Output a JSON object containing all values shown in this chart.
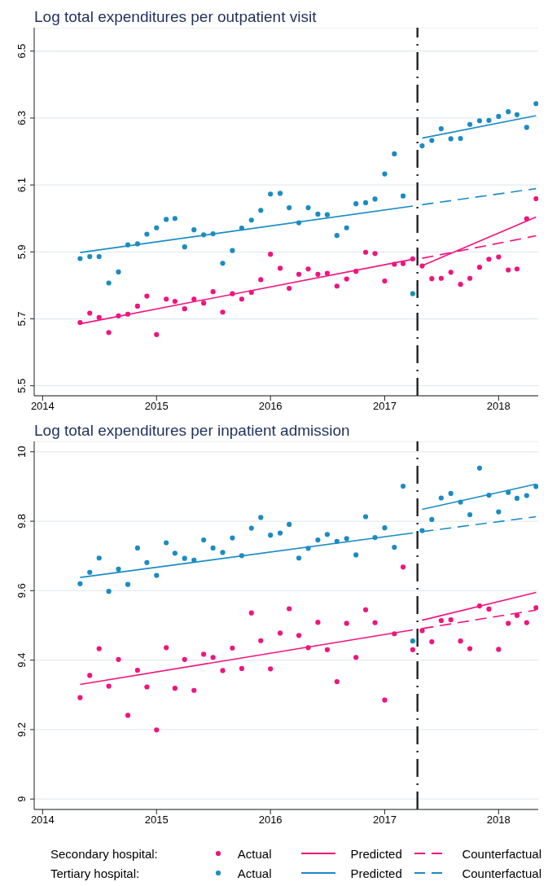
{
  "chart_data": [
    {
      "type": "scatter",
      "title": "Log total expenditures per outpatient visit",
      "x": [
        "2014-05",
        "2014-06",
        "2014-07",
        "2014-08",
        "2014-09",
        "2014-10",
        "2014-11",
        "2014-12",
        "2015-01",
        "2015-02",
        "2015-03",
        "2015-04",
        "2015-05",
        "2015-06",
        "2015-07",
        "2015-08",
        "2015-09",
        "2015-10",
        "2015-11",
        "2015-12",
        "2016-01",
        "2016-02",
        "2016-03",
        "2016-04",
        "2016-05",
        "2016-06",
        "2016-07",
        "2016-08",
        "2016-09",
        "2016-10",
        "2016-11",
        "2016-12",
        "2017-01",
        "2017-02",
        "2017-03",
        "2017-04",
        "2017-05",
        "2017-06",
        "2017-07",
        "2017-08",
        "2017-09",
        "2017-10",
        "2017-11",
        "2017-12",
        "2018-01",
        "2018-02",
        "2018-03",
        "2018-04",
        "2018-05"
      ],
      "xlim": [
        "2013-12-05",
        "2018-05-08"
      ],
      "xticks": [
        "2014",
        "2015",
        "2016",
        "2017",
        "2018"
      ],
      "ylim": [
        5.47,
        6.57
      ],
      "yticks": [
        5.5,
        5.7,
        5.9,
        6.1,
        6.3,
        6.5
      ],
      "grid": "y",
      "ref_lines": [
        {
          "axis": "x",
          "value": "2017-04-16",
          "color": "#222222",
          "line_style": "dashed"
        }
      ],
      "series": [
        {
          "color": "#f0147f",
          "marker": "circle",
          "values": [
            5.689,
            5.717,
            5.704,
            5.659,
            5.709,
            5.714,
            5.738,
            5.768,
            5.653,
            5.759,
            5.752,
            5.73,
            5.759,
            5.747,
            5.781,
            5.72,
            5.775,
            5.759,
            5.779,
            5.817,
            5.893,
            5.851,
            5.791,
            5.833,
            5.849,
            5.833,
            5.836,
            5.798,
            5.819,
            5.842,
            5.899,
            5.895,
            5.813,
            5.863,
            5.865,
            5.879,
            5.858,
            5.82,
            5.821,
            5.839,
            5.803,
            5.821,
            5.854,
            5.878,
            5.885,
            5.846,
            5.849,
            5.999,
            6.059
          ]
        },
        {
          "type": "line",
          "color": "#f0147f",
          "line_style": "solid",
          "x": [
            "2014-05",
            "2017-04"
          ],
          "values": [
            5.685,
            5.878
          ]
        },
        {
          "type": "line",
          "color": "#f0147f",
          "line_style": "solid",
          "x": [
            "2017-05",
            "2018-05"
          ],
          "values": [
            5.859,
            6.004
          ]
        },
        {
          "type": "line",
          "color": "#f0147f",
          "line_style": "dashed",
          "x": [
            "2017-05",
            "2018-05"
          ],
          "values": [
            5.881,
            5.948
          ]
        },
        {
          "color": "#1a8cc3",
          "marker": "circle",
          "values": [
            5.88,
            5.886,
            5.886,
            5.807,
            5.84,
            5.921,
            5.924,
            5.953,
            5.972,
            5.997,
            6.0,
            5.915,
            5.966,
            5.951,
            5.954,
            5.866,
            5.904,
            5.971,
            5.995,
            6.024,
            6.073,
            6.075,
            6.032,
            5.987,
            6.032,
            6.013,
            6.011,
            5.949,
            5.972,
            6.044,
            6.047,
            6.058,
            6.133,
            6.193,
            6.067,
            5.775,
            6.217,
            6.233,
            6.268,
            6.238,
            6.239,
            6.281,
            6.292,
            6.293,
            6.305,
            6.319,
            6.31,
            6.272,
            6.343
          ]
        },
        {
          "type": "line",
          "color": "#1a8cc3",
          "line_style": "solid",
          "x": [
            "2014-05",
            "2017-04"
          ],
          "values": [
            5.898,
            6.037
          ]
        },
        {
          "type": "line",
          "color": "#1a8cc3",
          "line_style": "solid",
          "x": [
            "2017-05",
            "2018-05"
          ],
          "values": [
            6.24,
            6.307
          ]
        },
        {
          "type": "line",
          "color": "#1a8cc3",
          "line_style": "dashed",
          "x": [
            "2017-05",
            "2018-05"
          ],
          "values": [
            6.041,
            6.089
          ]
        }
      ]
    },
    {
      "type": "scatter",
      "title": "Log total expenditures per inpatient admission",
      "x": [
        "2014-05",
        "2014-06",
        "2014-07",
        "2014-08",
        "2014-09",
        "2014-10",
        "2014-11",
        "2014-12",
        "2015-01",
        "2015-02",
        "2015-03",
        "2015-04",
        "2015-05",
        "2015-06",
        "2015-07",
        "2015-08",
        "2015-09",
        "2015-10",
        "2015-11",
        "2015-12",
        "2016-01",
        "2016-02",
        "2016-03",
        "2016-04",
        "2016-05",
        "2016-06",
        "2016-07",
        "2016-08",
        "2016-09",
        "2016-10",
        "2016-11",
        "2016-12",
        "2017-01",
        "2017-02",
        "2017-03",
        "2017-04",
        "2017-05",
        "2017-06",
        "2017-07",
        "2017-08",
        "2017-09",
        "2017-10",
        "2017-11",
        "2017-12",
        "2018-01",
        "2018-02",
        "2018-03",
        "2018-04",
        "2018-05"
      ],
      "xlim": [
        "2013-12-05",
        "2018-05-08"
      ],
      "xticks": [
        "2014",
        "2015",
        "2016",
        "2017",
        "2018"
      ],
      "ylim": [
        8.97,
        10.03
      ],
      "yticks": [
        9,
        9.2,
        9.4,
        9.6,
        9.8,
        10
      ],
      "grid": "y",
      "legend": "bottom",
      "annotations": [
        "Secondary hospital:",
        "Tertiary hospital:"
      ],
      "ref_lines": [
        {
          "axis": "x",
          "value": "2017-04-16",
          "color": "#222222",
          "line_style": "dashed"
        }
      ],
      "series": [
        {
          "name": "Actual",
          "color": "#f0147f",
          "marker": "circle",
          "values": [
            9.292,
            9.356,
            9.433,
            9.325,
            9.402,
            9.241,
            9.371,
            9.323,
            9.199,
            9.436,
            9.319,
            9.402,
            9.313,
            9.417,
            9.408,
            9.37,
            9.435,
            9.376,
            9.536,
            9.456,
            9.375,
            9.478,
            9.548,
            9.471,
            9.436,
            9.509,
            9.43,
            9.338,
            9.506,
            9.408,
            9.545,
            9.508,
            9.285,
            9.476,
            9.668,
            9.43,
            9.485,
            9.453,
            9.514,
            9.516,
            9.455,
            9.433,
            9.556,
            9.547,
            9.431,
            9.506,
            9.529,
            9.508,
            9.551
          ]
        },
        {
          "type": "line",
          "name": "Predicted",
          "color": "#f0147f",
          "line_style": "solid",
          "x": [
            "2014-05",
            "2017-04"
          ],
          "values": [
            9.33,
            9.487
          ]
        },
        {
          "type": "line",
          "color": "#f0147f",
          "line_style": "solid",
          "x": [
            "2017-05",
            "2018-05"
          ],
          "values": [
            9.515,
            9.595
          ]
        },
        {
          "type": "line",
          "name": "Counterfactual",
          "color": "#f0147f",
          "line_style": "dashed",
          "x": [
            "2017-05",
            "2018-05"
          ],
          "values": [
            9.491,
            9.544
          ]
        },
        {
          "name": "Actual",
          "color": "#1a8cc3",
          "marker": "circle",
          "values": [
            9.62,
            9.653,
            9.694,
            9.598,
            9.662,
            9.618,
            9.723,
            9.681,
            9.644,
            9.738,
            9.708,
            9.693,
            9.688,
            9.746,
            9.723,
            9.71,
            9.752,
            9.701,
            9.78,
            9.811,
            9.76,
            9.766,
            9.791,
            9.694,
            9.722,
            9.746,
            9.762,
            9.742,
            9.75,
            9.703,
            9.813,
            9.753,
            9.781,
            9.725,
            9.901,
            9.455,
            9.773,
            9.805,
            9.867,
            9.88,
            9.855,
            9.819,
            9.953,
            9.875,
            9.827,
            9.883,
            9.866,
            9.874,
            9.9
          ]
        },
        {
          "type": "line",
          "name": "Predicted",
          "color": "#1a8cc3",
          "line_style": "solid",
          "x": [
            "2014-05",
            "2017-04"
          ],
          "values": [
            9.638,
            9.766
          ]
        },
        {
          "type": "line",
          "color": "#1a8cc3",
          "line_style": "solid",
          "x": [
            "2017-05",
            "2018-05"
          ],
          "values": [
            9.834,
            9.907
          ]
        },
        {
          "type": "line",
          "name": "Counterfactual",
          "color": "#1a8cc3",
          "line_style": "dashed",
          "x": [
            "2017-05",
            "2018-05"
          ],
          "values": [
            9.77,
            9.813
          ]
        }
      ]
    }
  ]
}
